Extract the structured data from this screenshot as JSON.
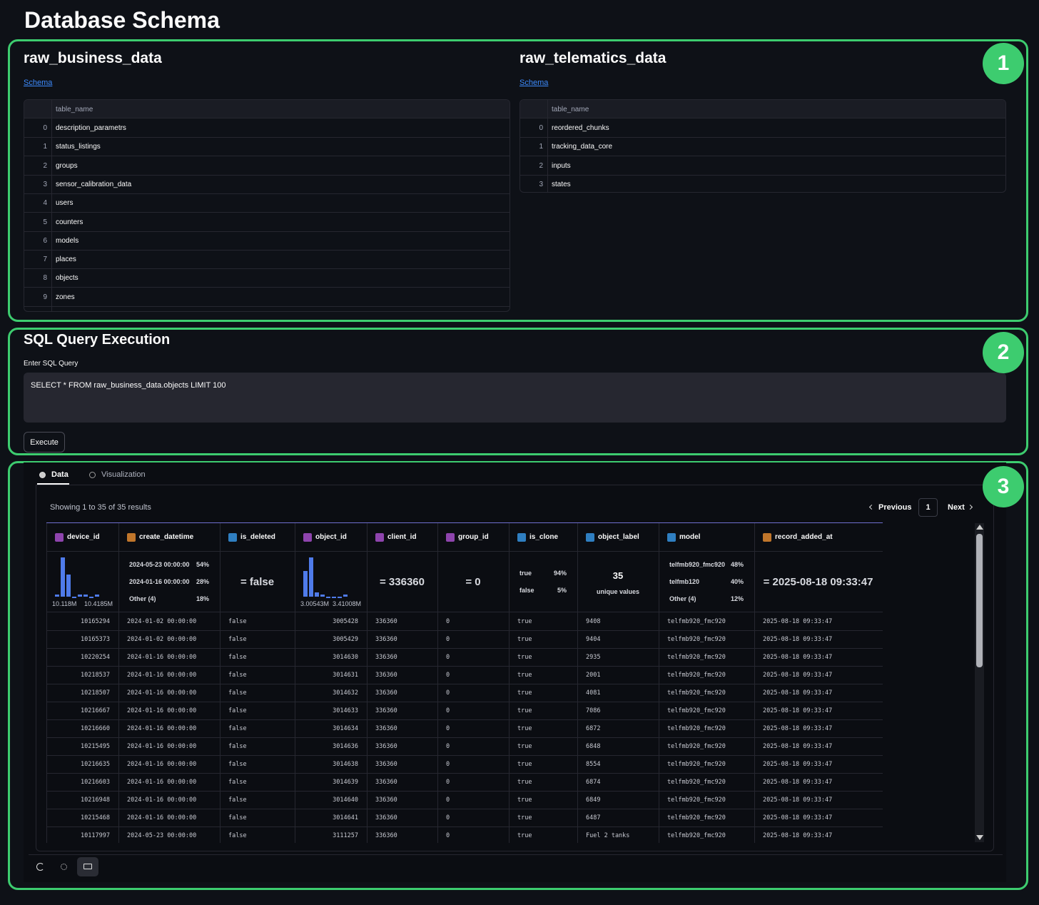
{
  "header": {
    "title": "Database Schema"
  },
  "badges": [
    "1",
    "2",
    "3"
  ],
  "schemas": [
    {
      "name": "raw_business_data",
      "link": "Schema",
      "column": "table_name",
      "rows": [
        [
          0,
          "description_parametrs"
        ],
        [
          1,
          "status_listings"
        ],
        [
          2,
          "groups"
        ],
        [
          3,
          "sensor_calibration_data"
        ],
        [
          4,
          "users"
        ],
        [
          5,
          "counters"
        ],
        [
          6,
          "models"
        ],
        [
          7,
          "places"
        ],
        [
          8,
          "objects"
        ],
        [
          9,
          "zones"
        ]
      ]
    },
    {
      "name": "raw_telematics_data",
      "link": "Schema",
      "column": "table_name",
      "rows": [
        [
          0,
          "reordered_chunks"
        ],
        [
          1,
          "tracking_data_core"
        ],
        [
          2,
          "inputs"
        ],
        [
          3,
          "states"
        ]
      ]
    }
  ],
  "sql": {
    "title": "SQL Query Execution",
    "label": "Enter SQL Query",
    "query": "SELECT * FROM raw_business_data.objects LIMIT 100",
    "button": "Execute"
  },
  "results": {
    "tabs": [
      "Data",
      "Visualization"
    ],
    "summary": "Showing 1 to 35 of 35 results",
    "pagination": {
      "previous": "Previous",
      "page": "1",
      "next": "Next"
    },
    "columns": [
      {
        "name": "device_id",
        "color": "#8e44ad",
        "histogram": [
          1,
          18,
          10,
          0,
          1,
          1,
          0,
          1
        ],
        "min_label": "10.118M",
        "max_label": "10.4185M"
      },
      {
        "name": "create_datetime",
        "color": "#c0762b",
        "top": [
          [
            "2024-05-23 00:00:00",
            "54%"
          ],
          [
            "2024-01-16 00:00:00",
            "28%"
          ],
          [
            "Other (4)",
            "18%"
          ]
        ]
      },
      {
        "name": "is_deleted",
        "color": "#2f7fc1",
        "single": "= false"
      },
      {
        "name": "object_id",
        "color": "#8e44ad",
        "histogram": [
          11,
          17,
          2,
          1,
          0,
          0,
          0,
          1
        ],
        "min_label": "3.00543M",
        "max_label": "3.41008M"
      },
      {
        "name": "client_id",
        "color": "#8e44ad",
        "single": "= 336360"
      },
      {
        "name": "group_id",
        "color": "#8e44ad",
        "single": "= 0"
      },
      {
        "name": "is_clone",
        "color": "#2f7fc1",
        "top": [
          [
            "true",
            "94%"
          ],
          [
            "false",
            "5%"
          ]
        ]
      },
      {
        "name": "object_label",
        "color": "#2f7fc1",
        "unique": "35",
        "unique_label": "unique values"
      },
      {
        "name": "model",
        "color": "#2f7fc1",
        "top": [
          [
            "telfmb920_fmc920",
            "48%"
          ],
          [
            "telfmb120",
            "40%"
          ],
          [
            "Other (4)",
            "12%"
          ]
        ]
      },
      {
        "name": "record_added_at",
        "color": "#c0762b",
        "single": "= 2025-08-18 09:33:47"
      }
    ],
    "rows": [
      [
        10165294,
        "2024-01-02 00:00:00",
        "false",
        3005428,
        336360,
        0,
        "true",
        "9408",
        "telfmb920_fmc920",
        "2025-08-18 09:33:47"
      ],
      [
        10165373,
        "2024-01-02 00:00:00",
        "false",
        3005429,
        336360,
        0,
        "true",
        "9404",
        "telfmb920_fmc920",
        "2025-08-18 09:33:47"
      ],
      [
        10220254,
        "2024-01-16 00:00:00",
        "false",
        3014630,
        336360,
        0,
        "true",
        "2935",
        "telfmb920_fmc920",
        "2025-08-18 09:33:47"
      ],
      [
        10218537,
        "2024-01-16 00:00:00",
        "false",
        3014631,
        336360,
        0,
        "true",
        "2001",
        "telfmb920_fmc920",
        "2025-08-18 09:33:47"
      ],
      [
        10218507,
        "2024-01-16 00:00:00",
        "false",
        3014632,
        336360,
        0,
        "true",
        "4081",
        "telfmb920_fmc920",
        "2025-08-18 09:33:47"
      ],
      [
        10216667,
        "2024-01-16 00:00:00",
        "false",
        3014633,
        336360,
        0,
        "true",
        "7086",
        "telfmb920_fmc920",
        "2025-08-18 09:33:47"
      ],
      [
        10216660,
        "2024-01-16 00:00:00",
        "false",
        3014634,
        336360,
        0,
        "true",
        "6872",
        "telfmb920_fmc920",
        "2025-08-18 09:33:47"
      ],
      [
        10215495,
        "2024-01-16 00:00:00",
        "false",
        3014636,
        336360,
        0,
        "true",
        "6848",
        "telfmb920_fmc920",
        "2025-08-18 09:33:47"
      ],
      [
        10216635,
        "2024-01-16 00:00:00",
        "false",
        3014638,
        336360,
        0,
        "true",
        "8554",
        "telfmb920_fmc920",
        "2025-08-18 09:33:47"
      ],
      [
        10216603,
        "2024-01-16 00:00:00",
        "false",
        3014639,
        336360,
        0,
        "true",
        "6874",
        "telfmb920_fmc920",
        "2025-08-18 09:33:47"
      ],
      [
        10216948,
        "2024-01-16 00:00:00",
        "false",
        3014640,
        336360,
        0,
        "true",
        "6849",
        "telfmb920_fmc920",
        "2025-08-18 09:33:47"
      ],
      [
        10215468,
        "2024-01-16 00:00:00",
        "false",
        3014641,
        336360,
        0,
        "true",
        "6487",
        "telfmb920_fmc920",
        "2025-08-18 09:33:47"
      ],
      [
        10117997,
        "2024-05-23 00:00:00",
        "false",
        3111257,
        336360,
        0,
        "true",
        "Fuel 2 tanks",
        "telfmb920_fmc920",
        "2025-08-18 09:33:47"
      ]
    ]
  }
}
